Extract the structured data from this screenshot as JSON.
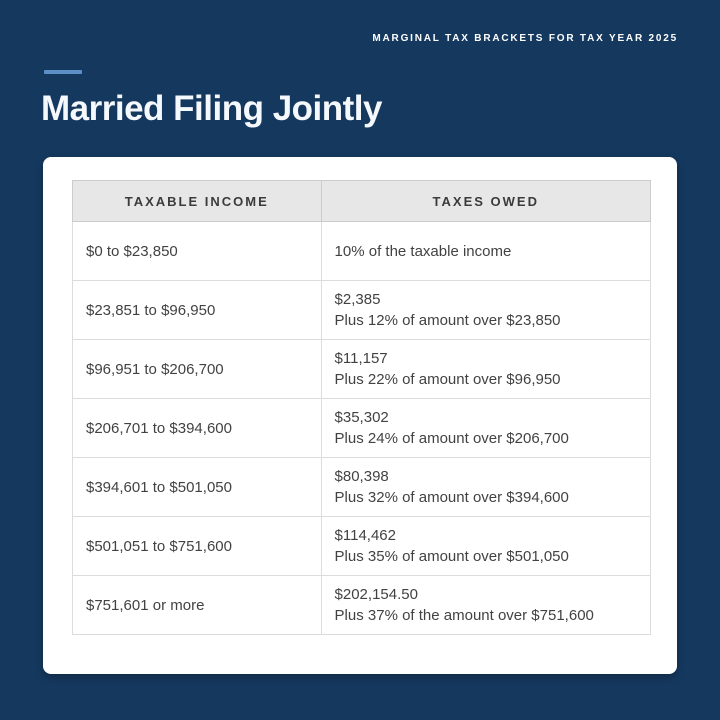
{
  "header": {
    "kicker": "MARGINAL TAX BRACKETS FOR TAX YEAR 2025",
    "title": "Married Filing Jointly"
  },
  "table": {
    "columns": [
      "TAXABLE INCOME",
      "TAXES OWED"
    ],
    "rows": [
      {
        "income": "$0 to $23,850",
        "taxes": "10% of the taxable income"
      },
      {
        "income": "$23,851 to $96,950",
        "taxes": "$2,385\nPlus 12% of amount over $23,850"
      },
      {
        "income": "$96,951 to $206,700",
        "taxes": "$11,157\nPlus 22% of amount over $96,950"
      },
      {
        "income": "$206,701 to $394,600",
        "taxes": "$35,302\nPlus 24% of amount over $206,700"
      },
      {
        "income": "$394,601 to $501,050",
        "taxes": "$80,398\nPlus 32% of amount over $394,600"
      },
      {
        "income": "$501,051 to $751,600",
        "taxes": "$114,462\nPlus 35% of amount over $501,050"
      },
      {
        "income": "$751,601 or more",
        "taxes": "$202,154.50\nPlus 37% of the amount over $751,600"
      }
    ]
  },
  "colors": {
    "background": "#15385e",
    "accent_dash": "#5d8fc7",
    "card_background": "#ffffff",
    "table_header_background": "#e7e7e7",
    "table_border": "#dcdcdc",
    "body_text": "#424242",
    "title_text": "#f5f8fc"
  },
  "chart_data": {
    "type": "table",
    "title": "Married Filing Jointly",
    "subtitle": "MARGINAL TAX BRACKETS FOR TAX YEAR 2025",
    "columns": [
      "TAXABLE INCOME",
      "TAXES OWED"
    ],
    "rows": [
      [
        "$0 to $23,850",
        "10% of the taxable income"
      ],
      [
        "$23,851 to $96,950",
        "$2,385 Plus 12% of amount over $23,850"
      ],
      [
        "$96,951 to $206,700",
        "$11,157 Plus 22% of amount over $96,950"
      ],
      [
        "$206,701 to $394,600",
        "$35,302 Plus 24% of amount over $206,700"
      ],
      [
        "$394,601 to $501,050",
        "$80,398 Plus 32% of amount over $394,600"
      ],
      [
        "$501,051 to $751,600",
        "$114,462 Plus 35% of amount over $501,050"
      ],
      [
        "$751,601 or more",
        "$202,154.50 Plus 37% of the amount over $751,600"
      ]
    ]
  }
}
